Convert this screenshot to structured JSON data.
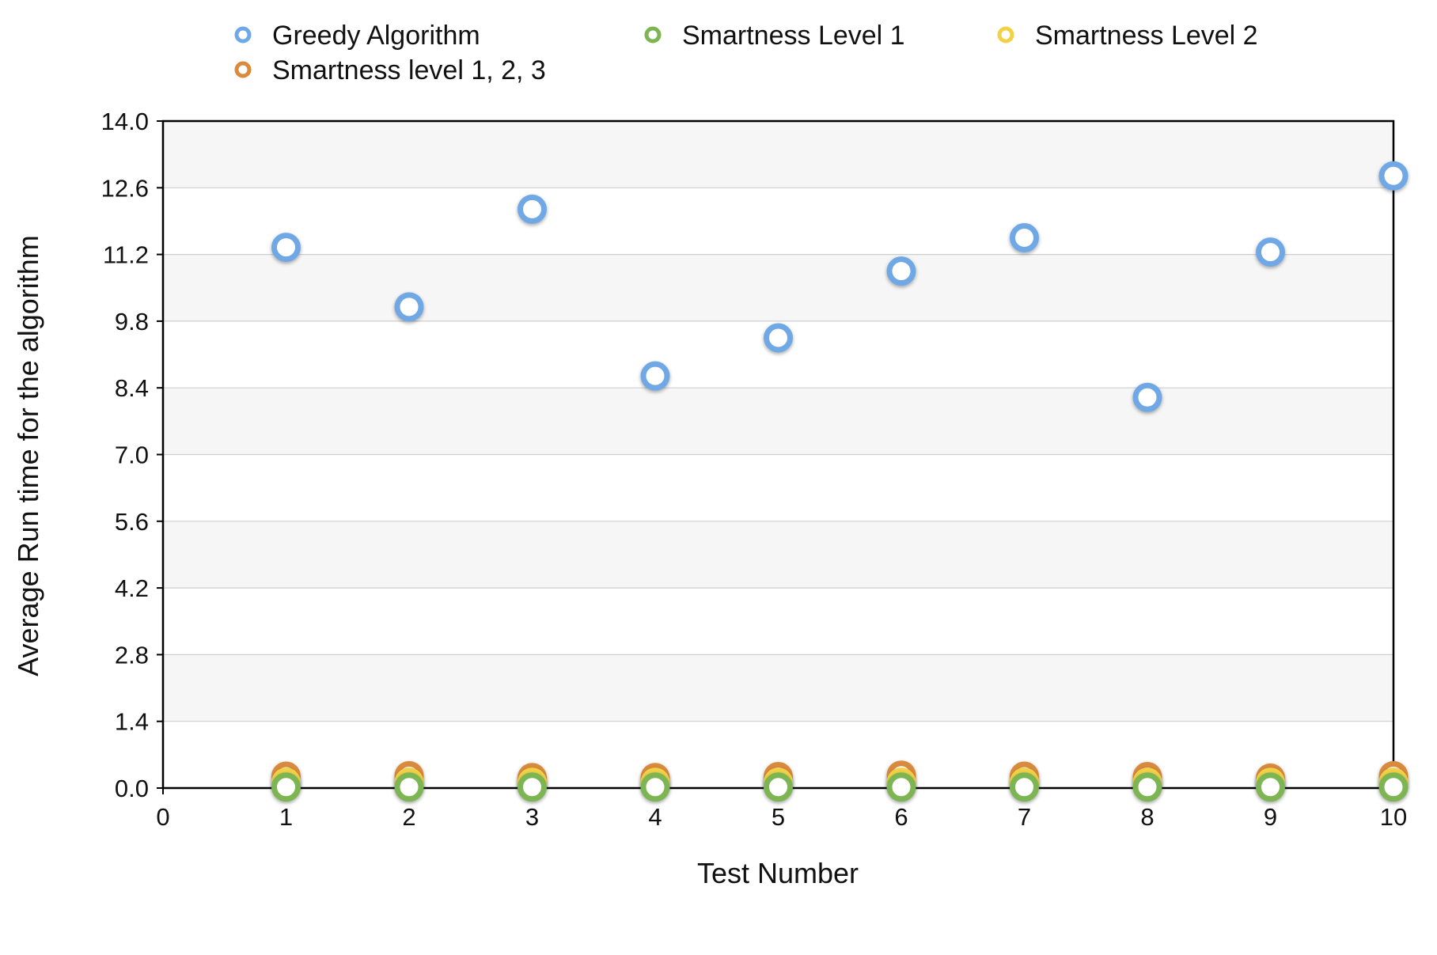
{
  "chart_data": {
    "type": "scatter",
    "title": "",
    "xlabel": "Test Number",
    "ylabel": "Average Run time for the algorithm",
    "xlim": [
      0,
      10
    ],
    "ylim": [
      0,
      14
    ],
    "xticks": [
      0,
      1,
      2,
      3,
      4,
      5,
      6,
      7,
      8,
      9,
      10
    ],
    "xtick_labels": [
      "0",
      "1",
      "2",
      "3",
      "4",
      "5",
      "6",
      "7",
      "8",
      "9",
      "10"
    ],
    "yticks": [
      0,
      1.4,
      2.8,
      4.2,
      5.6,
      7,
      8.4,
      9.8,
      11.2,
      12.6,
      14
    ],
    "ytick_labels": [
      "0.0",
      "1.4",
      "2.8",
      "4.2",
      "5.6",
      "7.0",
      "8.4",
      "9.8",
      "11.2",
      "12.6",
      "14.0"
    ],
    "grid": "horizontal",
    "legend_position": "top",
    "x": [
      1,
      2,
      3,
      4,
      5,
      6,
      7,
      8,
      9,
      10
    ],
    "series": [
      {
        "name": "Greedy Algorithm",
        "color": "#6fa8e6",
        "values": [
          11.35,
          10.1,
          12.15,
          8.65,
          9.45,
          10.85,
          11.55,
          8.2,
          11.25,
          12.85
        ]
      },
      {
        "name": "Smartness Level 1",
        "color": "#7db553",
        "values": [
          0.02,
          0.02,
          0.02,
          0.02,
          0.02,
          0.02,
          0.02,
          0.02,
          0.02,
          0.02
        ]
      },
      {
        "name": "Smartness Level 2",
        "color": "#f2d146",
        "values": [
          0.12,
          0.12,
          0.12,
          0.12,
          0.12,
          0.12,
          0.12,
          0.12,
          0.12,
          0.12
        ]
      },
      {
        "name": "Smartness level 1, 2, 3",
        "color": "#d98a3d",
        "values": [
          0.25,
          0.26,
          0.22,
          0.22,
          0.24,
          0.27,
          0.25,
          0.24,
          0.21,
          0.26
        ]
      }
    ]
  }
}
